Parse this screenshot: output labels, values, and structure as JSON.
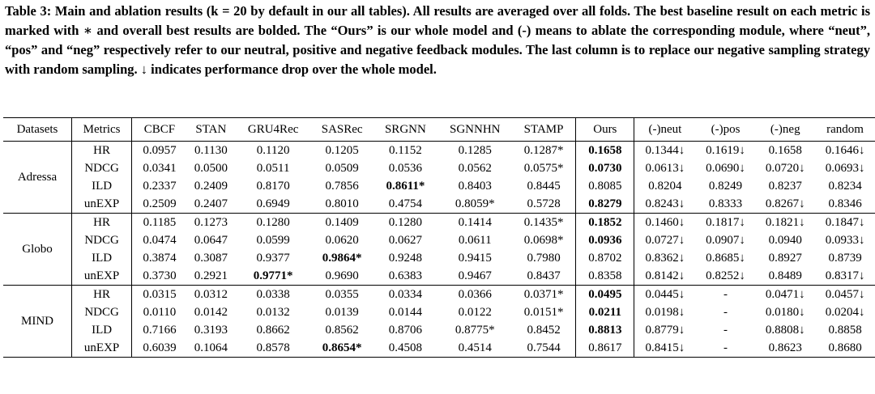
{
  "caption": "Table 3: Main and ablation results (k = 20 by default in our all tables). All results are averaged over all folds. The best baseline result on each metric is marked with ∗ and overall best results are bolded. The “Ours” is our whole model and (-) means to ablate the corresponding module, where “neut”, “pos” and “neg” respectively refer to our neutral, positive and negative feedback modules. The last column is to replace our negative sampling strategy with random sampling. ↓ indicates performance drop over the whole model.",
  "table": {
    "header": [
      "Datasets",
      "Metrics",
      "CBCF",
      "STAN",
      "GRU4Rec",
      "SASRec",
      "SRGNN",
      "SGNNHN",
      "STAMP",
      "Ours",
      "(-)neut",
      "(-)pos",
      "(-)neg",
      "random"
    ],
    "groups": [
      {
        "dataset": "Adressa",
        "rows": [
          {
            "metric": "HR",
            "cells": [
              "0.0957",
              "0.1130",
              "0.1120",
              "0.1205",
              "0.1152",
              "0.1285",
              "0.1287*",
              {
                "text": "0.1658",
                "bold": true
              },
              "0.1344↓",
              "0.1619↓",
              "0.1658",
              "0.1646↓"
            ]
          },
          {
            "metric": "NDCG",
            "cells": [
              "0.0341",
              "0.0500",
              "0.0511",
              "0.0509",
              "0.0536",
              "0.0562",
              "0.0575*",
              {
                "text": "0.0730",
                "bold": true
              },
              "0.0613↓",
              "0.0690↓",
              "0.0720↓",
              "0.0693↓"
            ]
          },
          {
            "metric": "ILD",
            "cells": [
              "0.2337",
              "0.2409",
              "0.8170",
              "0.7856",
              {
                "text": "0.8611*",
                "bold": true
              },
              "0.8403",
              "0.8445",
              "0.8085",
              "0.8204",
              "0.8249",
              "0.8237",
              "0.8234"
            ]
          },
          {
            "metric": "unEXP",
            "cells": [
              "0.2509",
              "0.2407",
              "0.6949",
              "0.8010",
              "0.4754",
              "0.8059*",
              "0.5728",
              {
                "text": "0.8279",
                "bold": true
              },
              "0.8243↓",
              "0.8333",
              "0.8267↓",
              "0.8346"
            ]
          }
        ]
      },
      {
        "dataset": "Globo",
        "rows": [
          {
            "metric": "HR",
            "cells": [
              "0.1185",
              "0.1273",
              "0.1280",
              "0.1409",
              "0.1280",
              "0.1414",
              "0.1435*",
              {
                "text": "0.1852",
                "bold": true
              },
              "0.1460↓",
              "0.1817↓",
              "0.1821↓",
              "0.1847↓"
            ]
          },
          {
            "metric": "NDCG",
            "cells": [
              "0.0474",
              "0.0647",
              "0.0599",
              "0.0620",
              "0.0627",
              "0.0611",
              "0.0698*",
              {
                "text": "0.0936",
                "bold": true
              },
              "0.0727↓",
              "0.0907↓",
              "0.0940",
              "0.0933↓"
            ]
          },
          {
            "metric": "ILD",
            "cells": [
              "0.3874",
              "0.3087",
              "0.9377",
              {
                "text": "0.9864*",
                "bold": true
              },
              "0.9248",
              "0.9415",
              "0.7980",
              "0.8702",
              "0.8362↓",
              "0.8685↓",
              "0.8927",
              "0.8739"
            ]
          },
          {
            "metric": "unEXP",
            "cells": [
              "0.3730",
              "0.2921",
              {
                "text": "0.9771*",
                "bold": true
              },
              "0.9690",
              "0.6383",
              "0.9467",
              "0.8437",
              "0.8358",
              "0.8142↓",
              "0.8252↓",
              "0.8489",
              "0.8317↓"
            ]
          }
        ]
      },
      {
        "dataset": "MIND",
        "rows": [
          {
            "metric": "HR",
            "cells": [
              "0.0315",
              "0.0312",
              "0.0338",
              "0.0355",
              "0.0334",
              "0.0366",
              "0.0371*",
              {
                "text": "0.0495",
                "bold": true
              },
              "0.0445↓",
              "-",
              "0.0471↓",
              "0.0457↓"
            ]
          },
          {
            "metric": "NDCG",
            "cells": [
              "0.0110",
              "0.0142",
              "0.0132",
              "0.0139",
              "0.0144",
              "0.0122",
              "0.0151*",
              {
                "text": "0.0211",
                "bold": true
              },
              "0.0198↓",
              "-",
              "0.0180↓",
              "0.0204↓"
            ]
          },
          {
            "metric": "ILD",
            "cells": [
              "0.7166",
              "0.3193",
              "0.8662",
              "0.8562",
              "0.8706",
              "0.8775*",
              "0.8452",
              {
                "text": "0.8813",
                "bold": true
              },
              "0.8779↓",
              "-",
              "0.8808↓",
              "0.8858"
            ]
          },
          {
            "metric": "unEXP",
            "cells": [
              "0.6039",
              "0.1064",
              "0.8578",
              {
                "text": "0.8654*",
                "bold": true
              },
              "0.4508",
              "0.4514",
              "0.7544",
              "0.8617",
              "0.8415↓",
              "-",
              "0.8623",
              "0.8680"
            ]
          }
        ]
      }
    ]
  }
}
